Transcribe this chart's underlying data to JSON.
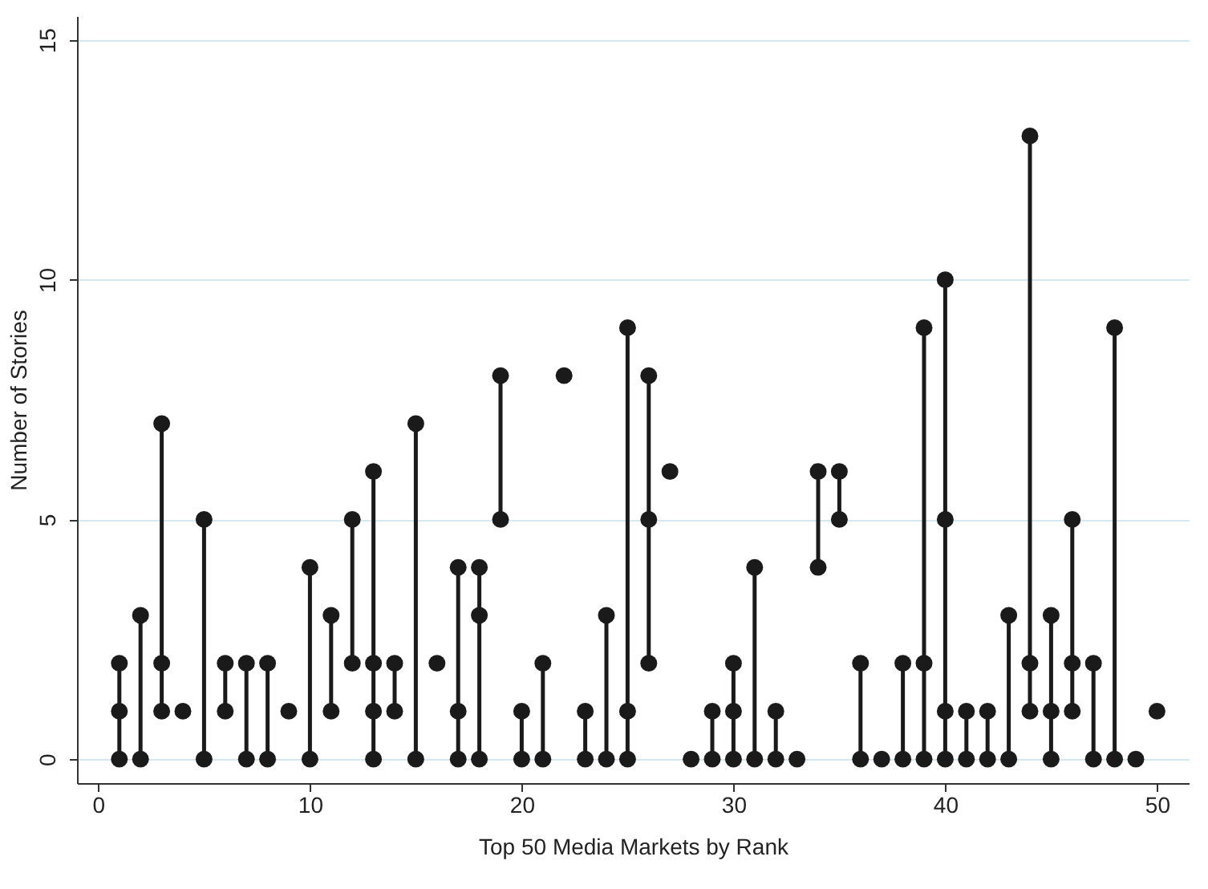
{
  "chart_data": {
    "type": "line",
    "xlabel": "Top 50 Media Markets by Rank",
    "ylabel": "Number of Stories",
    "xlim": [
      -1,
      51.5
    ],
    "xticks": [
      0,
      10,
      20,
      30,
      40,
      50
    ],
    "ylim": [
      -0.5,
      15.5
    ],
    "yticks": [
      0,
      5,
      10,
      15
    ],
    "grid": "y",
    "marker": "circle",
    "line_style": "solid",
    "series": [
      {
        "color": "#1a1a1a",
        "x": [
          1,
          1,
          1
        ],
        "values": [
          0,
          1,
          2
        ]
      },
      {
        "color": "#1a1a1a",
        "x": [
          2,
          2
        ],
        "values": [
          0,
          3
        ]
      },
      {
        "color": "#1a1a1a",
        "x": [
          3,
          3,
          3
        ],
        "values": [
          1,
          2,
          7
        ]
      },
      {
        "color": "#1a1a1a",
        "x": [
          4
        ],
        "values": [
          1
        ]
      },
      {
        "color": "#1a1a1a",
        "x": [
          5,
          5
        ],
        "values": [
          0,
          5
        ]
      },
      {
        "color": "#1a1a1a",
        "x": [
          6,
          6
        ],
        "values": [
          1,
          2
        ]
      },
      {
        "color": "#1a1a1a",
        "x": [
          7,
          7
        ],
        "values": [
          0,
          2
        ]
      },
      {
        "color": "#1a1a1a",
        "x": [
          8,
          8
        ],
        "values": [
          0,
          2
        ]
      },
      {
        "color": "#1a1a1a",
        "x": [
          9
        ],
        "values": [
          1
        ]
      },
      {
        "color": "#1a1a1a",
        "x": [
          10,
          10
        ],
        "values": [
          0,
          4
        ]
      },
      {
        "color": "#1a1a1a",
        "x": [
          11,
          11
        ],
        "values": [
          1,
          3
        ]
      },
      {
        "color": "#1a1a1a",
        "x": [
          12,
          12
        ],
        "values": [
          2,
          5
        ]
      },
      {
        "color": "#1a1a1a",
        "x": [
          13,
          13,
          13,
          13
        ],
        "values": [
          0,
          1,
          2,
          6
        ]
      },
      {
        "color": "#1a1a1a",
        "x": [
          14,
          14
        ],
        "values": [
          1,
          2
        ]
      },
      {
        "color": "#1a1a1a",
        "x": [
          15,
          15
        ],
        "values": [
          0,
          7
        ]
      },
      {
        "color": "#1a1a1a",
        "x": [
          16
        ],
        "values": [
          2
        ]
      },
      {
        "color": "#1a1a1a",
        "x": [
          17,
          17,
          17
        ],
        "values": [
          0,
          1,
          4
        ]
      },
      {
        "color": "#1a1a1a",
        "x": [
          18,
          18,
          18
        ],
        "values": [
          0,
          3,
          4
        ]
      },
      {
        "color": "#1a1a1a",
        "x": [
          19,
          19
        ],
        "values": [
          5,
          8
        ]
      },
      {
        "color": "#1a1a1a",
        "x": [
          20,
          20
        ],
        "values": [
          0,
          1
        ]
      },
      {
        "color": "#1a1a1a",
        "x": [
          21,
          21
        ],
        "values": [
          0,
          2
        ]
      },
      {
        "color": "#1a1a1a",
        "x": [
          22
        ],
        "values": [
          8
        ]
      },
      {
        "color": "#1a1a1a",
        "x": [
          23,
          23
        ],
        "values": [
          0,
          1
        ]
      },
      {
        "color": "#1a1a1a",
        "x": [
          24,
          24
        ],
        "values": [
          0,
          3
        ]
      },
      {
        "color": "#1a1a1a",
        "x": [
          25,
          25,
          25
        ],
        "values": [
          0,
          1,
          9
        ]
      },
      {
        "color": "#1a1a1a",
        "x": [
          26,
          26,
          26
        ],
        "values": [
          2,
          5,
          8
        ]
      },
      {
        "color": "#1a1a1a",
        "x": [
          27
        ],
        "values": [
          6
        ]
      },
      {
        "color": "#1a1a1a",
        "x": [
          28
        ],
        "values": [
          0
        ]
      },
      {
        "color": "#1a1a1a",
        "x": [
          29,
          29
        ],
        "values": [
          0,
          1
        ]
      },
      {
        "color": "#1a1a1a",
        "x": [
          30,
          30,
          30
        ],
        "values": [
          0,
          1,
          2
        ]
      },
      {
        "color": "#1a1a1a",
        "x": [
          31,
          31
        ],
        "values": [
          0,
          4
        ]
      },
      {
        "color": "#1a1a1a",
        "x": [
          32,
          32
        ],
        "values": [
          0,
          1
        ]
      },
      {
        "color": "#1a1a1a",
        "x": [
          33
        ],
        "values": [
          0
        ]
      },
      {
        "color": "#1a1a1a",
        "x": [
          34,
          34
        ],
        "values": [
          4,
          6
        ]
      },
      {
        "color": "#1a1a1a",
        "x": [
          35,
          35
        ],
        "values": [
          5,
          6
        ]
      },
      {
        "color": "#1a1a1a",
        "x": [
          36,
          36
        ],
        "values": [
          0,
          2
        ]
      },
      {
        "color": "#1a1a1a",
        "x": [
          37
        ],
        "values": [
          0
        ]
      },
      {
        "color": "#1a1a1a",
        "x": [
          38,
          38
        ],
        "values": [
          0,
          2
        ]
      },
      {
        "color": "#1a1a1a",
        "x": [
          39,
          39,
          39
        ],
        "values": [
          0,
          2,
          9
        ]
      },
      {
        "color": "#1a1a1a",
        "x": [
          40,
          40,
          40,
          40
        ],
        "values": [
          0,
          1,
          5,
          10
        ]
      },
      {
        "color": "#1a1a1a",
        "x": [
          41,
          41
        ],
        "values": [
          0,
          1
        ]
      },
      {
        "color": "#1a1a1a",
        "x": [
          42,
          42
        ],
        "values": [
          0,
          1
        ]
      },
      {
        "color": "#1a1a1a",
        "x": [
          43,
          43
        ],
        "values": [
          0,
          3
        ]
      },
      {
        "color": "#1a1a1a",
        "x": [
          44,
          44,
          44
        ],
        "values": [
          1,
          2,
          13
        ]
      },
      {
        "color": "#1a1a1a",
        "x": [
          45,
          45,
          45
        ],
        "values": [
          0,
          1,
          3
        ]
      },
      {
        "color": "#1a1a1a",
        "x": [
          46,
          46,
          46
        ],
        "values": [
          1,
          2,
          5
        ]
      },
      {
        "color": "#1a1a1a",
        "x": [
          47,
          47
        ],
        "values": [
          0,
          2
        ]
      },
      {
        "color": "#1a1a1a",
        "x": [
          48,
          48
        ],
        "values": [
          0,
          9
        ]
      },
      {
        "color": "#1a1a1a",
        "x": [
          49
        ],
        "values": [
          0
        ]
      },
      {
        "color": "#1a1a1a",
        "x": [
          50
        ],
        "values": [
          1
        ]
      }
    ]
  }
}
